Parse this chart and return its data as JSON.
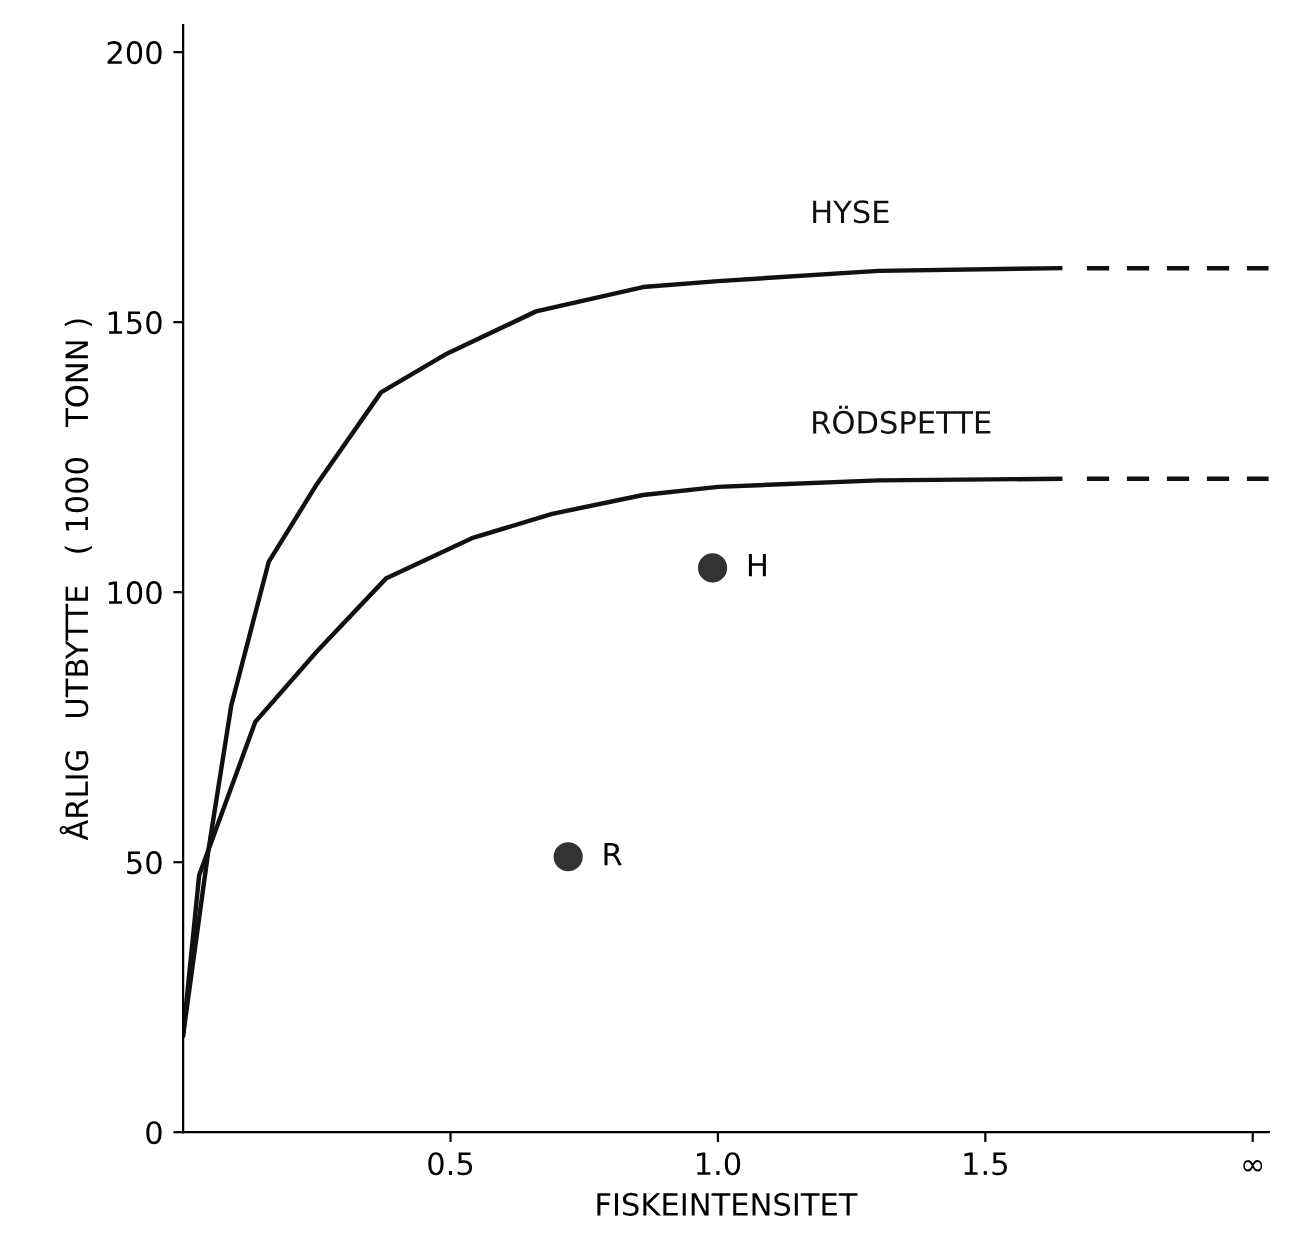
{
  "chart_data": {
    "type": "line",
    "xlabel": "FISKEINTENSITET",
    "ylabel": "ÅRLIG   UTBYTTE   ( 1000   TONN )",
    "xlim": [
      0,
      2.03
    ],
    "ylim": [
      0,
      205
    ],
    "xticks": [
      0.5,
      {
        "value": 1.0,
        "label": "1.0"
      },
      1.5,
      {
        "value": 2.0,
        "label": "∞"
      }
    ],
    "yticks": [
      0,
      50,
      100,
      150,
      200
    ],
    "grid": false,
    "legend": false,
    "marker": "none",
    "series": [
      {
        "name": "HYSE",
        "color": "#111111",
        "line_style": "solid",
        "x": [
          0,
          0.047,
          0.09,
          0.16,
          0.25,
          0.37,
          0.49,
          0.66,
          0.86,
          1.0,
          1.3,
          1.64
        ],
        "values": [
          18,
          52,
          79,
          105.6,
          120,
          137,
          144,
          152,
          156.5,
          157.6,
          159.5,
          160
        ]
      },
      {
        "color": "#111111",
        "line_style": "dashed",
        "x": [
          1.69,
          2.03
        ],
        "values": [
          160,
          160
        ]
      },
      {
        "name": "RÖDSPETTE",
        "color": "#111111",
        "line_style": "solid",
        "x": [
          0,
          0.03,
          0.135,
          0.25,
          0.38,
          0.54,
          0.69,
          0.86,
          1.0,
          1.3,
          1.64
        ],
        "values": [
          18,
          47.6,
          76,
          89,
          102.6,
          110,
          114.5,
          118,
          119.5,
          120.7,
          121
        ]
      },
      {
        "color": "#111111",
        "line_style": "dashed",
        "x": [
          1.69,
          2.03
        ],
        "values": [
          121,
          121
        ]
      },
      {
        "type": "scatter",
        "marker": "circle",
        "color": "#333333",
        "x": [
          0.99,
          0.72
        ],
        "values": [
          104.5,
          51
        ]
      }
    ],
    "annotations": [
      {
        "text": "H",
        "x": 0.99,
        "y": 104.5
      },
      {
        "text": "R",
        "x": 0.72,
        "y": 51
      }
    ]
  }
}
